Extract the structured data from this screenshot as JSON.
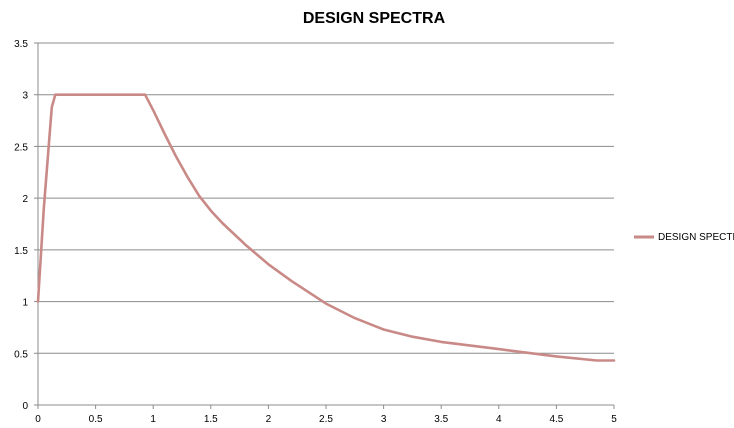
{
  "chart_data": {
    "type": "line",
    "title": "DESIGN SPECTRA",
    "xlabel": "",
    "ylabel": "",
    "xlim": [
      0,
      5
    ],
    "ylim": [
      0,
      3.5
    ],
    "x_ticks": [
      "0",
      "0.5",
      "1",
      "1.5",
      "2",
      "2.5",
      "3",
      "3.5",
      "4",
      "4.5",
      "5"
    ],
    "y_ticks": [
      "0",
      "0.5",
      "1",
      "1.5",
      "2",
      "2.5",
      "3",
      "3.5"
    ],
    "grid": "horizontal",
    "legend_position": "right",
    "series": [
      {
        "name": "DESIGN SPECTRA",
        "color": "#c98a87",
        "x": [
          0,
          0.05,
          0.1,
          0.12,
          0.15,
          0.2,
          0.5,
          0.93,
          1.0,
          1.1,
          1.2,
          1.3,
          1.4,
          1.5,
          1.6,
          1.8,
          2.0,
          2.2,
          2.5,
          2.75,
          3.0,
          3.25,
          3.5,
          4.0,
          4.5,
          4.85,
          5.0
        ],
        "values": [
          1.0,
          1.9,
          2.6,
          2.88,
          3.0,
          3.0,
          3.0,
          3.0,
          2.85,
          2.62,
          2.4,
          2.2,
          2.02,
          1.88,
          1.76,
          1.55,
          1.36,
          1.2,
          0.98,
          0.84,
          0.73,
          0.66,
          0.61,
          0.54,
          0.47,
          0.43,
          0.43
        ]
      }
    ]
  }
}
